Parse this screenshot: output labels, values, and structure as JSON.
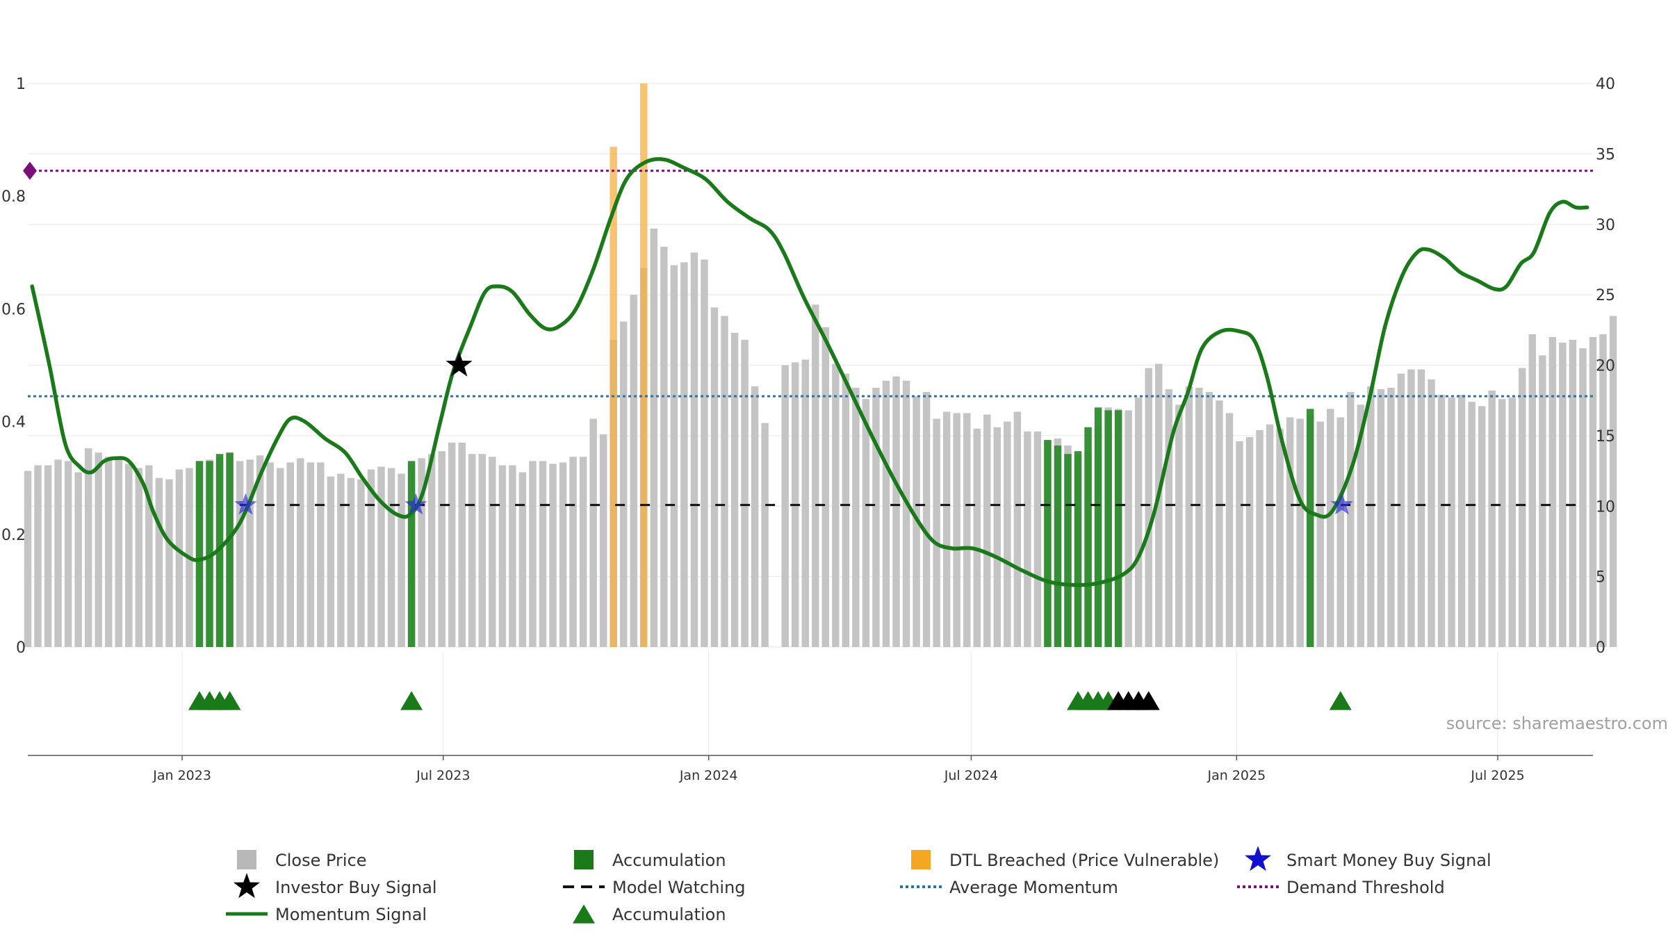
{
  "chart_data": {
    "type": "bar",
    "source_text": "source: sharemaestro.com",
    "y_left": {
      "ticks": [
        "0",
        "0.2",
        "0.4",
        "0.6",
        "0.8",
        "1"
      ],
      "range": [
        0,
        1
      ]
    },
    "y_right": {
      "ticks": [
        "0",
        "5",
        "10",
        "15",
        "20",
        "25",
        "30",
        "35",
        "40"
      ],
      "range": [
        0,
        40
      ]
    },
    "x_axis": {
      "start": "2022-09-16",
      "end": "2025-09-05",
      "ticks": [
        {
          "date": "2023-01-01",
          "label": "Jan 2023"
        },
        {
          "date": "2023-07-01",
          "label": "Jul 2023"
        },
        {
          "date": "2024-01-01",
          "label": "Jan 2024"
        },
        {
          "date": "2024-07-01",
          "label": "Jul 2024"
        },
        {
          "date": "2025-01-01",
          "label": "Jan 2025"
        },
        {
          "date": "2025-07-01",
          "label": "Jul 2025"
        }
      ]
    },
    "series": [
      {
        "name": "Close Price",
        "color": "#c4c4c4",
        "weeks": {
          "start": "2022-09-16",
          "interval_days": 7,
          "values": [
            12.5,
            12.9,
            12.9,
            13.3,
            13.2,
            12.4,
            14.1,
            13.8,
            13.5,
            13.3,
            13.0,
            12.7,
            12.9,
            12.0,
            11.9,
            12.6,
            12.7,
            13.2,
            13.3,
            13.5,
            13.7,
            13.2,
            13.3,
            13.6,
            13.1,
            12.7,
            13.1,
            13.4,
            13.1,
            13.1,
            12.1,
            12.3,
            12.0,
            11.9,
            12.6,
            12.8,
            12.7,
            12.3,
            13.0,
            13.4,
            13.7,
            13.9,
            14.5,
            14.5,
            13.7,
            13.7,
            13.5,
            12.9,
            12.9,
            12.4,
            13.2,
            13.2,
            13.0,
            13.1,
            13.5,
            13.5,
            16.2,
            15.1,
            21.8,
            23.1,
            25.0,
            26.9,
            29.7,
            28.4,
            27.1,
            27.3,
            28.0,
            27.5,
            24.1,
            23.5,
            22.3,
            21.8,
            18.5,
            15.9,
            0,
            20.0,
            20.2,
            20.4,
            24.3,
            22.7,
            20.1,
            19.4,
            18.4,
            17.6,
            18.4,
            18.9,
            19.2,
            18.9,
            17.8,
            18.1,
            16.2,
            16.7,
            16.6,
            16.6,
            15.5,
            16.5,
            15.6,
            16.0,
            16.7,
            15.3,
            15.3,
            14.6,
            14.8,
            14.3,
            13.6,
            13.8,
            15.6,
            17.0,
            16.9,
            16.8,
            17.7,
            19.8,
            20.1,
            18.3,
            17.2,
            18.5,
            18.4,
            18.1,
            17.5,
            16.6,
            14.6,
            14.9,
            15.4,
            15.8,
            15.5,
            16.3,
            16.2,
            16.5,
            16.0,
            16.9,
            16.3,
            18.1,
            17.2,
            18.5,
            18.3,
            18.4,
            19.4,
            19.7,
            19.7,
            19.0,
            17.9,
            17.7,
            17.9,
            17.4,
            17.1,
            18.2,
            17.6,
            17.7,
            19.8,
            22.2,
            20.7,
            22.0,
            21.6,
            21.8,
            21.2,
            22.0,
            22.2,
            23.5
          ]
        }
      },
      {
        "name": "Accumulation",
        "color": "#2e8b2e",
        "bars": [
          {
            "week": 17,
            "value": 13.2
          },
          {
            "week": 18,
            "value": 13.2
          },
          {
            "week": 19,
            "value": 13.7
          },
          {
            "week": 20,
            "value": 13.8
          },
          {
            "week": 38,
            "value": 13.2
          },
          {
            "week": 101,
            "value": 14.7
          },
          {
            "week": 102,
            "value": 14.3
          },
          {
            "week": 103,
            "value": 13.7
          },
          {
            "week": 104,
            "value": 13.9
          },
          {
            "week": 105,
            "value": 15.6
          },
          {
            "week": 106,
            "value": 17.0
          },
          {
            "week": 107,
            "value": 16.8
          },
          {
            "week": 108,
            "value": 16.8
          },
          {
            "week": 127,
            "value": 16.9
          }
        ]
      },
      {
        "name": "DTL Breached (Price Vulnerable)",
        "color": "#f5b042",
        "bars": [
          {
            "week": 58,
            "value": 35.5
          },
          {
            "week": 61,
            "value": 40.0
          }
        ]
      },
      {
        "name": "Momentum Signal",
        "color": "#1a7a1a",
        "axis": "left",
        "points": [
          [
            "2022-09-19",
            0.64
          ],
          [
            "2022-10-01",
            0.5
          ],
          [
            "2022-10-12",
            0.36
          ],
          [
            "2022-10-22",
            0.32
          ],
          [
            "2022-10-30",
            0.31
          ],
          [
            "2022-11-08",
            0.33
          ],
          [
            "2022-11-16",
            0.335
          ],
          [
            "2022-11-25",
            0.33
          ],
          [
            "2022-12-05",
            0.29
          ],
          [
            "2022-12-12",
            0.24
          ],
          [
            "2022-12-22",
            0.19
          ],
          [
            "2023-01-05",
            0.16
          ],
          [
            "2023-01-13",
            0.155
          ],
          [
            "2023-01-25",
            0.17
          ],
          [
            "2023-02-10",
            0.22
          ],
          [
            "2023-02-25",
            0.31
          ],
          [
            "2023-03-08",
            0.37
          ],
          [
            "2023-03-17",
            0.405
          ],
          [
            "2023-03-27",
            0.4
          ],
          [
            "2023-04-10",
            0.37
          ],
          [
            "2023-04-24",
            0.345
          ],
          [
            "2023-05-06",
            0.3
          ],
          [
            "2023-05-18",
            0.26
          ],
          [
            "2023-05-30",
            0.235
          ],
          [
            "2023-06-08",
            0.235
          ],
          [
            "2023-06-17",
            0.275
          ],
          [
            "2023-06-29",
            0.4
          ],
          [
            "2023-07-08",
            0.49
          ],
          [
            "2023-07-20",
            0.57
          ],
          [
            "2023-07-30",
            0.63
          ],
          [
            "2023-08-08",
            0.64
          ],
          [
            "2023-08-18",
            0.63
          ],
          [
            "2023-08-30",
            0.59
          ],
          [
            "2023-09-10",
            0.565
          ],
          [
            "2023-09-20",
            0.57
          ],
          [
            "2023-10-01",
            0.6
          ],
          [
            "2023-10-13",
            0.67
          ],
          [
            "2023-10-25",
            0.76
          ],
          [
            "2023-11-05",
            0.83
          ],
          [
            "2023-11-18",
            0.86
          ],
          [
            "2023-12-01",
            0.865
          ],
          [
            "2023-12-15",
            0.85
          ],
          [
            "2023-12-30",
            0.83
          ],
          [
            "2024-01-14",
            0.79
          ],
          [
            "2024-01-30",
            0.76
          ],
          [
            "2024-02-12",
            0.74
          ],
          [
            "2024-02-22",
            0.7
          ],
          [
            "2024-03-07",
            0.62
          ],
          [
            "2024-03-23",
            0.54
          ],
          [
            "2024-04-09",
            0.45
          ],
          [
            "2024-04-24",
            0.37
          ],
          [
            "2024-05-10",
            0.29
          ],
          [
            "2024-05-26",
            0.22
          ],
          [
            "2024-06-06",
            0.185
          ],
          [
            "2024-06-18",
            0.175
          ],
          [
            "2024-07-02",
            0.175
          ],
          [
            "2024-07-18",
            0.16
          ],
          [
            "2024-08-06",
            0.135
          ],
          [
            "2024-08-25",
            0.115
          ],
          [
            "2024-09-14",
            0.11
          ],
          [
            "2024-09-30",
            0.115
          ],
          [
            "2024-10-15",
            0.13
          ],
          [
            "2024-10-25",
            0.16
          ],
          [
            "2024-11-05",
            0.24
          ],
          [
            "2024-11-18",
            0.38
          ],
          [
            "2024-11-28",
            0.45
          ],
          [
            "2024-12-08",
            0.53
          ],
          [
            "2024-12-21",
            0.56
          ],
          [
            "2025-01-03",
            0.56
          ],
          [
            "2025-01-13",
            0.545
          ],
          [
            "2025-01-22",
            0.48
          ],
          [
            "2025-02-02",
            0.36
          ],
          [
            "2025-02-14",
            0.26
          ],
          [
            "2025-02-25",
            0.235
          ],
          [
            "2025-03-08",
            0.24
          ],
          [
            "2025-03-22",
            0.32
          ],
          [
            "2025-04-03",
            0.44
          ],
          [
            "2025-04-14",
            0.57
          ],
          [
            "2025-04-26",
            0.66
          ],
          [
            "2025-05-06",
            0.7
          ],
          [
            "2025-05-14",
            0.705
          ],
          [
            "2025-05-25",
            0.69
          ],
          [
            "2025-06-05",
            0.665
          ],
          [
            "2025-06-17",
            0.65
          ],
          [
            "2025-06-29",
            0.635
          ],
          [
            "2025-07-07",
            0.64
          ],
          [
            "2025-07-17",
            0.68
          ],
          [
            "2025-07-26",
            0.7
          ],
          [
            "2025-08-06",
            0.77
          ],
          [
            "2025-08-15",
            0.79
          ],
          [
            "2025-08-24",
            0.78
          ],
          [
            "2025-09-01",
            0.78
          ]
        ]
      },
      {
        "name": "Average Momentum",
        "color": "#2573a8",
        "axis": "left",
        "value": 0.445
      },
      {
        "name": "Demand Threshold",
        "color": "#7a0f7a",
        "axis": "left",
        "value": 0.845
      },
      {
        "name": "Model Watching",
        "color": "#111111",
        "axis": "left",
        "value": 0.252,
        "segments": [
          [
            "2023-02-10",
            "2025-08-31"
          ]
        ]
      },
      {
        "name": "Smart Money Buy Signal",
        "color": "#2a2ad8",
        "axis": "left",
        "points": [
          [
            "2023-02-14",
            0.252
          ],
          [
            "2023-06-12",
            0.252
          ],
          [
            "2025-03-15",
            0.252
          ]
        ]
      },
      {
        "name": "Investor Buy Signal",
        "color": "#000000",
        "axis": "left",
        "points": [
          [
            "2023-07-12",
            0.5
          ]
        ]
      },
      {
        "name": "Accumulation",
        "color": "#1a7a1a",
        "markers": [
          {
            "date": "2023-01-13",
            "color": "#1a7a1a"
          },
          {
            "date": "2023-01-20",
            "color": "#1a7a1a"
          },
          {
            "date": "2023-01-27",
            "color": "#1a7a1a"
          },
          {
            "date": "2023-02-03",
            "color": "#1a7a1a"
          },
          {
            "date": "2023-06-09",
            "color": "#1a7a1a"
          },
          {
            "date": "2024-09-13",
            "color": "#1a7a1a"
          },
          {
            "date": "2024-09-20",
            "color": "#1a7a1a"
          },
          {
            "date": "2024-09-27",
            "color": "#1a7a1a"
          },
          {
            "date": "2024-10-04",
            "color": "#1a7a1a"
          },
          {
            "date": "2024-10-11",
            "color": "#000000"
          },
          {
            "date": "2024-10-18",
            "color": "#000000"
          },
          {
            "date": "2024-10-25",
            "color": "#000000"
          },
          {
            "date": "2024-11-01",
            "color": "#000000"
          },
          {
            "date": "2025-03-14",
            "color": "#1a7a1a"
          }
        ]
      }
    ],
    "legend": [
      {
        "label": "Close Price",
        "swatch": "square",
        "color": "#b8b8b8"
      },
      {
        "label": "Accumulation",
        "swatch": "square",
        "color": "#1a7a1a"
      },
      {
        "label": "DTL Breached (Price Vulnerable)",
        "swatch": "square",
        "color": "#f5a623"
      },
      {
        "label": "Smart Money Buy Signal",
        "swatch": "star",
        "color": "#1010d0"
      },
      {
        "label": "Investor Buy Signal",
        "swatch": "star",
        "color": "#000000"
      },
      {
        "label": "Model Watching",
        "swatch": "dash",
        "color": "#111111"
      },
      {
        "label": "Average Momentum",
        "swatch": "dot-line",
        "color": "#2573a8"
      },
      {
        "label": "Demand Threshold",
        "swatch": "dot-line",
        "color": "#7a0f7a"
      },
      {
        "label": "Momentum Signal",
        "swatch": "line",
        "color": "#1a7a1a"
      },
      {
        "label": "Accumulation",
        "swatch": "triangle",
        "color": "#1a7a1a"
      }
    ]
  }
}
